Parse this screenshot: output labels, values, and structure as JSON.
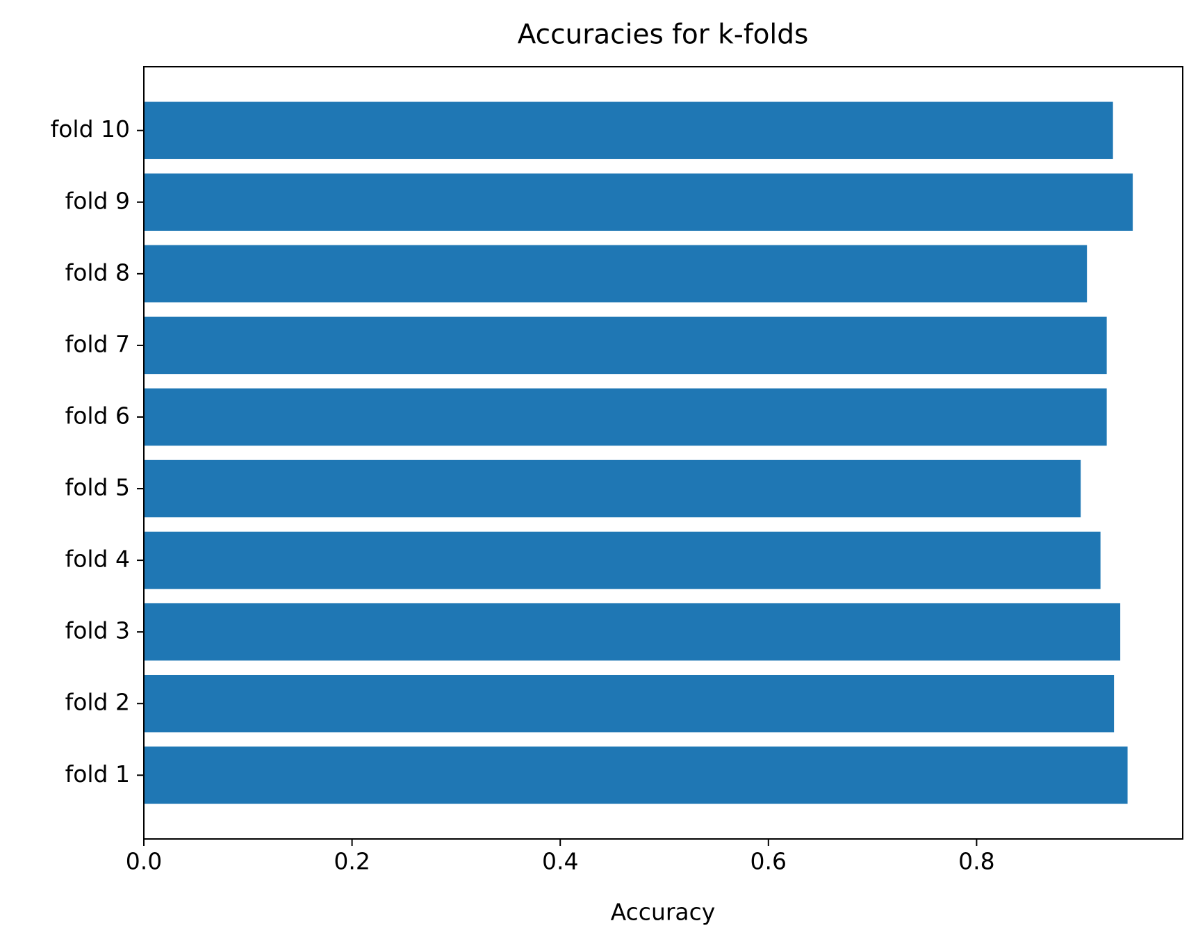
{
  "chart_data": {
    "type": "barh",
    "title": "Accuracies for k-folds",
    "x_label": "Accuracy",
    "categories": [
      "fold 1",
      "fold 2",
      "fold 3",
      "fold 4",
      "fold 5",
      "fold 6",
      "fold 7",
      "fold 8",
      "fold 9",
      "fold 10"
    ],
    "values": [
      0.945,
      0.932,
      0.938,
      0.919,
      0.9,
      0.925,
      0.925,
      0.906,
      0.95,
      0.931
    ],
    "color": "#1f77b4",
    "xlim": [
      0,
      0.998
    ],
    "xticks": [
      {
        "value": 0,
        "label": "0.0"
      },
      0.2,
      0.4,
      0.6,
      0.8
    ]
  }
}
